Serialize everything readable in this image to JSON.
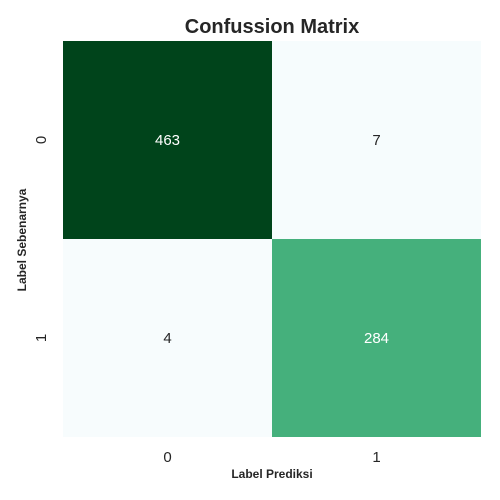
{
  "chart_data": {
    "type": "heatmap",
    "title": "Confussion Matrix",
    "xlabel": "Label Prediksi",
    "ylabel": "Label Sebenarnya",
    "x_categories": [
      "0",
      "1"
    ],
    "y_categories": [
      "0",
      "1"
    ],
    "matrix": [
      [
        463,
        7
      ],
      [
        4,
        284
      ]
    ],
    "colorbar": false,
    "colormap": "Greens",
    "colors": {
      "low": "#f7fcfd",
      "high": "#00441b",
      "text_dark": "#262626",
      "text_light": "#ffffff"
    }
  }
}
